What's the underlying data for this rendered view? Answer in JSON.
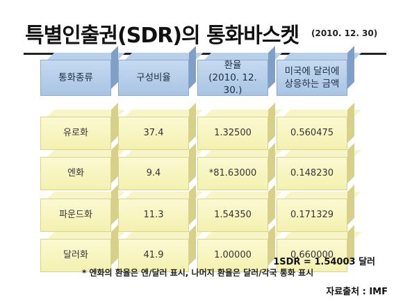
{
  "title": "특별인출권(SDR)의 통화바스켓",
  "date": "(2010. 12. 30)",
  "table": {
    "headers": [
      "통화종류",
      "구성비율",
      "환율\n(2010. 12. 30.)",
      "미국에 달러에\n상응하는 금액"
    ],
    "rows": [
      [
        "유로화",
        "37.4",
        "1.32500",
        "0.560475"
      ],
      [
        "엔화",
        "9.4",
        "*81.63000",
        "0.148230"
      ],
      [
        "파운드화",
        "11.3",
        "1.54350",
        "0.171329"
      ],
      [
        "달러화",
        "41.9",
        "1.00000",
        "0.660000"
      ]
    ]
  },
  "footer": {
    "sdr": "1SDR = 1.54003 달러",
    "note": "* 엔화의 환율은 엔/달러 표시, 나머지 환율은 달러/각국 통화 표시",
    "source": "자료출처 : IMF"
  },
  "colors": {
    "header_fill": "#b3cbe8",
    "row_fill": "#f7f4c0"
  }
}
